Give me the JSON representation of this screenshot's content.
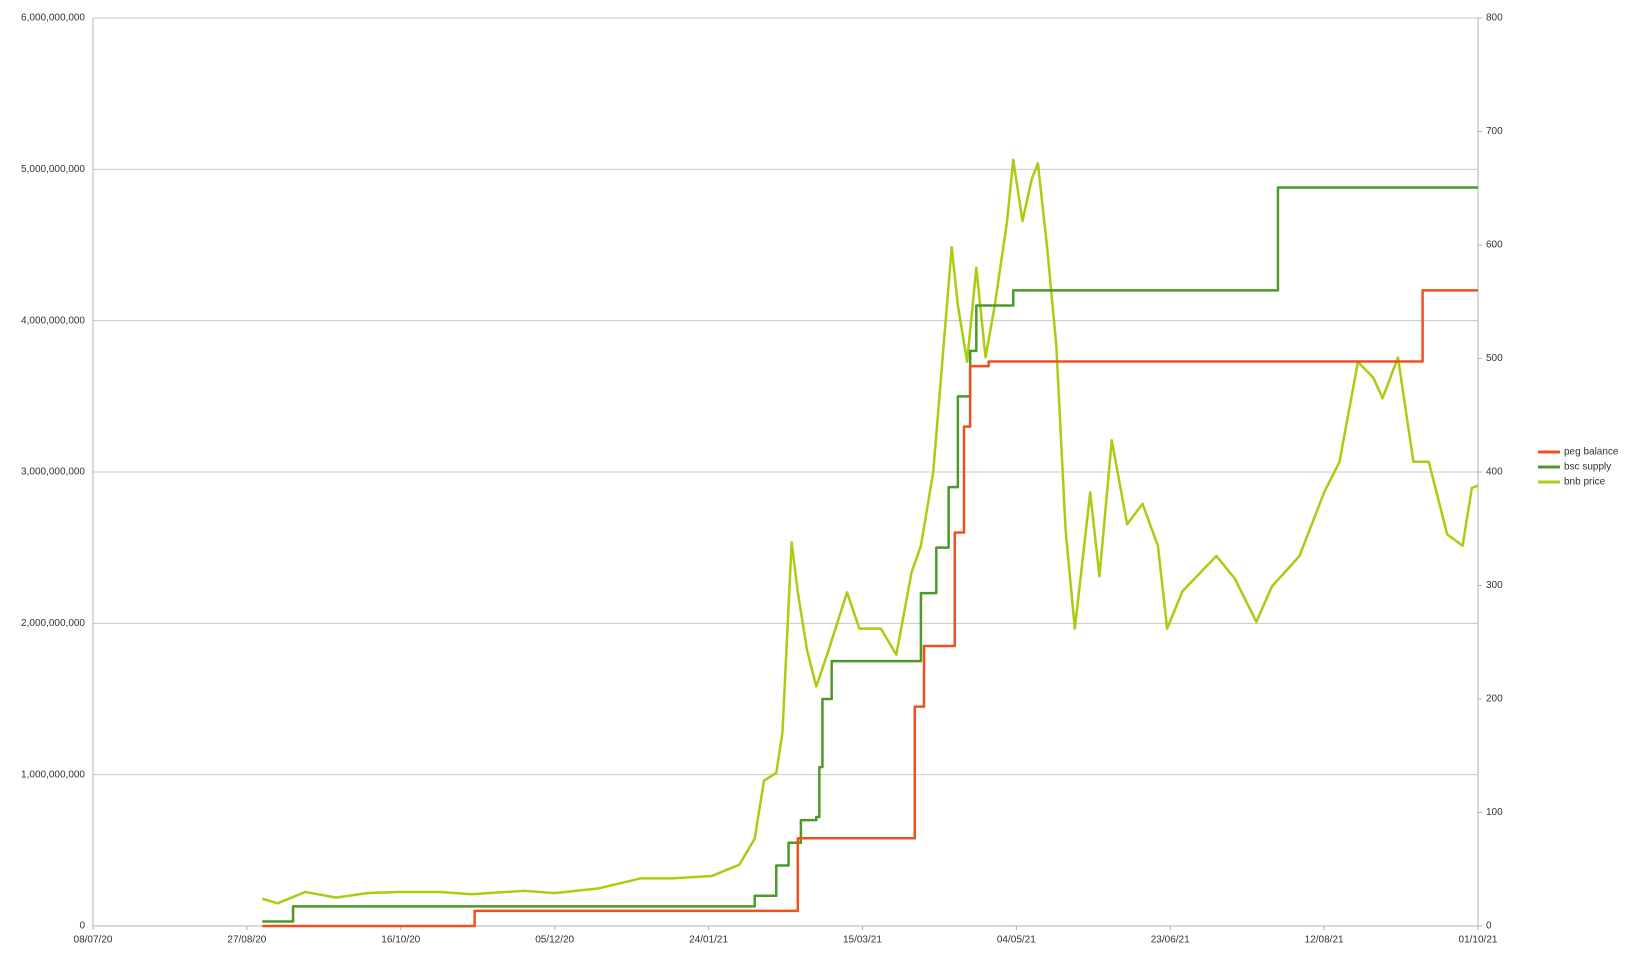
{
  "chart_data": {
    "type": "line",
    "xlim": [
      "08/07/20",
      "01/10/21"
    ],
    "xticks": [
      "08/07/20",
      "27/08/20",
      "16/10/20",
      "05/12/20",
      "24/01/21",
      "15/03/21",
      "04/05/21",
      "23/06/21",
      "12/08/21",
      "01/10/21"
    ],
    "ylim": [
      0,
      6000000000
    ],
    "yticks": [
      0,
      {
        "value": 1000000000,
        "label": "1,000,000,000"
      },
      {
        "value": 2000000000,
        "label": "2,000,000,000"
      },
      {
        "value": 3000000000,
        "label": "3,000,000,000"
      },
      {
        "value": 4000000000,
        "label": "4,000,000,000"
      },
      {
        "value": 5000000000,
        "label": "5,000,000,000"
      },
      {
        "value": 6000000000,
        "label": "6,000,000,000"
      }
    ],
    "y2lim": [
      0,
      800
    ],
    "y2ticks": [
      0,
      100,
      200,
      300,
      400,
      500,
      600,
      700,
      800
    ],
    "grid": true,
    "legend": "right",
    "series": [
      {
        "name": "peg balance",
        "color": "#f0501e",
        "step": true,
        "x": [
          "01/09/20",
          "09/11/20",
          "22/02/21",
          "01/04/21",
          "04/04/21",
          "14/04/21",
          "17/04/21",
          "19/04/21",
          "25/04/21",
          "13/09/21",
          "01/10/21"
        ],
        "values": [
          0,
          100000000,
          580000000,
          1450000000,
          1850000000,
          2600000000,
          3300000000,
          3700000000,
          3730000000,
          4200000000,
          4200000000
        ]
      },
      {
        "name": "bsc supply",
        "color": "#4c9a2a",
        "step": true,
        "x": [
          "01/09/20",
          "11/09/20",
          "01/02/21",
          "08/02/21",
          "15/02/21",
          "19/02/21",
          "23/02/21",
          "28/02/21",
          "01/03/21",
          "02/03/21",
          "05/03/21",
          "30/03/21",
          "03/04/21",
          "08/04/21",
          "12/04/21",
          "15/04/21",
          "19/04/21",
          "21/04/21",
          "03/05/21",
          "26/07/21",
          "28/07/21",
          "01/10/21"
        ],
        "values": [
          30000000,
          130000000,
          130000000,
          200000000,
          400000000,
          550000000,
          700000000,
          720000000,
          1050000000,
          1500000000,
          1750000000,
          1750000000,
          2200000000,
          2500000000,
          2900000000,
          3500000000,
          3800000000,
          4100000000,
          4200000000,
          4200000000,
          4880000000,
          4880000000
        ]
      },
      {
        "name": "bnb price",
        "color": "#aacc11",
        "axis": "y2",
        "step": false,
        "x": [
          "01/09/20",
          "06/09/20",
          "15/09/20",
          "25/09/20",
          "05/10/20",
          "15/10/20",
          "29/10/20",
          "08/11/20",
          "25/11/20",
          "05/12/20",
          "19/12/20",
          "02/01/21",
          "12/01/21",
          "25/01/21",
          "03/02/21",
          "08/02/21",
          "11/02/21",
          "15/02/21",
          "17/02/21",
          "20/02/21",
          "22/02/21",
          "25/02/21",
          "28/02/21",
          "04/03/21",
          "10/03/21",
          "14/03/21",
          "21/03/21",
          "26/03/21",
          "31/03/21",
          "03/04/21",
          "07/04/21",
          "13/04/21",
          "15/04/21",
          "18/04/21",
          "21/04/21",
          "24/04/21",
          "27/04/21",
          "01/05/21",
          "03/05/21",
          "06/05/21",
          "09/05/21",
          "11/05/21",
          "14/05/21",
          "17/05/21",
          "20/05/21",
          "23/05/21",
          "28/05/21",
          "31/05/21",
          "04/06/21",
          "09/06/21",
          "14/06/21",
          "19/06/21",
          "22/06/21",
          "27/06/21",
          "08/07/21",
          "14/07/21",
          "21/07/21",
          "26/07/21",
          "04/08/21",
          "12/08/21",
          "17/08/21",
          "23/08/21",
          "28/08/21",
          "31/08/21",
          "05/09/21",
          "10/09/21",
          "15/09/21",
          "21/09/21",
          "26/09/21",
          "29/09/21",
          "01/10/21"
        ],
        "values": [
          24,
          20,
          30,
          25,
          29,
          30,
          30,
          28,
          31,
          29,
          33,
          42,
          42,
          44,
          54,
          77,
          128,
          135,
          170,
          338,
          294,
          243,
          211,
          243,
          294,
          262,
          262,
          239,
          312,
          335,
          400,
          598,
          547,
          497,
          580,
          501,
          547,
          621,
          675,
          621,
          658,
          672,
          598,
          511,
          349,
          262,
          382,
          308,
          428,
          354,
          372,
          335,
          262,
          295,
          326,
          306,
          268,
          299,
          326,
          382,
          409,
          497,
          483,
          465,
          501,
          409,
          409,
          345,
          335,
          386,
          388
        ]
      }
    ]
  }
}
